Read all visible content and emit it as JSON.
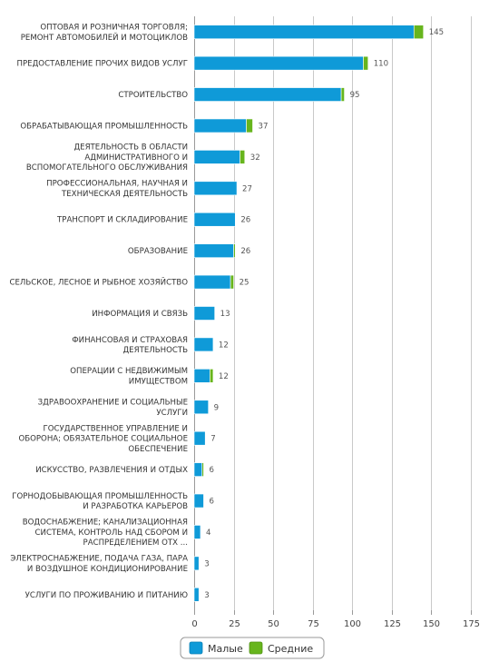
{
  "chart_data": {
    "type": "bar",
    "orientation": "horizontal",
    "stacked": true,
    "categories": [
      [
        "ОПТОВАЯ И РОЗНИЧНАЯ ТОРГОВЛЯ;",
        "РЕМОНТ АВТОМОБИЛЕЙ И МОТОЦИКЛОВ"
      ],
      [
        "ПРЕДОСТАВЛЕНИЕ ПРОЧИХ ВИДОВ УСЛУГ"
      ],
      [
        "СТРОИТЕЛЬСТВО"
      ],
      [
        "ОБРАБАТЫВАЮЩАЯ ПРОМЫШЛЕННОСТЬ"
      ],
      [
        "ДЕЯТЕЛЬНОСТЬ В ОБЛАСТИ",
        "АДМИНИСТРАТИВНОГО И",
        "ВСПОМОГАТЕЛЬНОГО ОБСЛУЖИВАНИЯ"
      ],
      [
        "ПРОФЕССИОНАЛЬНАЯ, НАУЧНАЯ И",
        "ТЕХНИЧЕСКАЯ ДЕЯТЕЛЬНОСТЬ"
      ],
      [
        "ТРАНСПОРТ И СКЛАДИРОВАНИЕ"
      ],
      [
        "ОБРАЗОВАНИЕ"
      ],
      [
        "СЕЛЬСКОЕ, ЛЕСНОЕ И РЫБНОЕ ХОЗЯЙСТВО"
      ],
      [
        "ИНФОРМАЦИЯ И СВЯЗЬ"
      ],
      [
        "ФИНАНСОВАЯ И СТРАХОВАЯ",
        "ДЕЯТЕЛЬНОСТЬ"
      ],
      [
        "ОПЕРАЦИИ С НЕДВИЖИМЫМ",
        "ИМУЩЕСТВОМ"
      ],
      [
        "ЗДРАВООХРАНЕНИЕ И СОЦИАЛЬНЫЕ",
        "УСЛУГИ"
      ],
      [
        "ГОСУДАРСТВЕННОЕ УПРАВЛЕНИЕ И",
        "ОБОРОНА; ОБЯЗАТЕЛЬНОЕ СОЦИАЛЬНОЕ",
        "ОБЕСПЕЧЕНИЕ"
      ],
      [
        "ИСКУССТВО, РАЗВЛЕЧЕНИЯ И ОТДЫХ"
      ],
      [
        "ГОРНОДОБЫВАЮЩАЯ ПРОМЫШЛЕННОСТЬ",
        "И РАЗРАБОТКА КАРЬЕРОВ"
      ],
      [
        "ВОДОСНАБЖЕНИЕ; КАНАЛИЗАЦИОННАЯ",
        "СИСТЕМА, КОНТРОЛЬ НАД СБОРОМ И",
        "РАСПРЕДЕЛЕНИЕМ ОТХ ..."
      ],
      [
        "ЭЛЕКТРОСНАБЖЕНИЕ, ПОДАЧА ГАЗА, ПАРА",
        "И ВОЗДУШНОЕ КОНДИЦИОНИРОВАНИЕ"
      ],
      [
        "УСЛУГИ ПО ПРОЖИВАНИЮ И ПИТАНИЮ"
      ]
    ],
    "series": [
      {
        "name": "Малые",
        "color": "#0f9ad8",
        "values": [
          139,
          107,
          93,
          33,
          29,
          27,
          26,
          25,
          23,
          13,
          12,
          10,
          9,
          7,
          5,
          6,
          4,
          3,
          3
        ]
      },
      {
        "name": "Средние",
        "color": "#67b51d",
        "values": [
          6,
          3,
          2,
          4,
          3,
          0,
          0,
          1,
          2,
          0,
          0,
          2,
          0,
          0,
          1,
          0,
          0,
          0,
          0
        ]
      }
    ],
    "totals": [
      145,
      110,
      95,
      37,
      32,
      27,
      26,
      26,
      25,
      13,
      12,
      12,
      9,
      7,
      6,
      6,
      4,
      3,
      3
    ],
    "xlim": [
      0,
      175
    ],
    "xticks": [
      0,
      25,
      50,
      75,
      100,
      125,
      150,
      175
    ],
    "grid": true,
    "legend_position": "bottom-center",
    "title": "",
    "xlabel": "",
    "ylabel": ""
  }
}
